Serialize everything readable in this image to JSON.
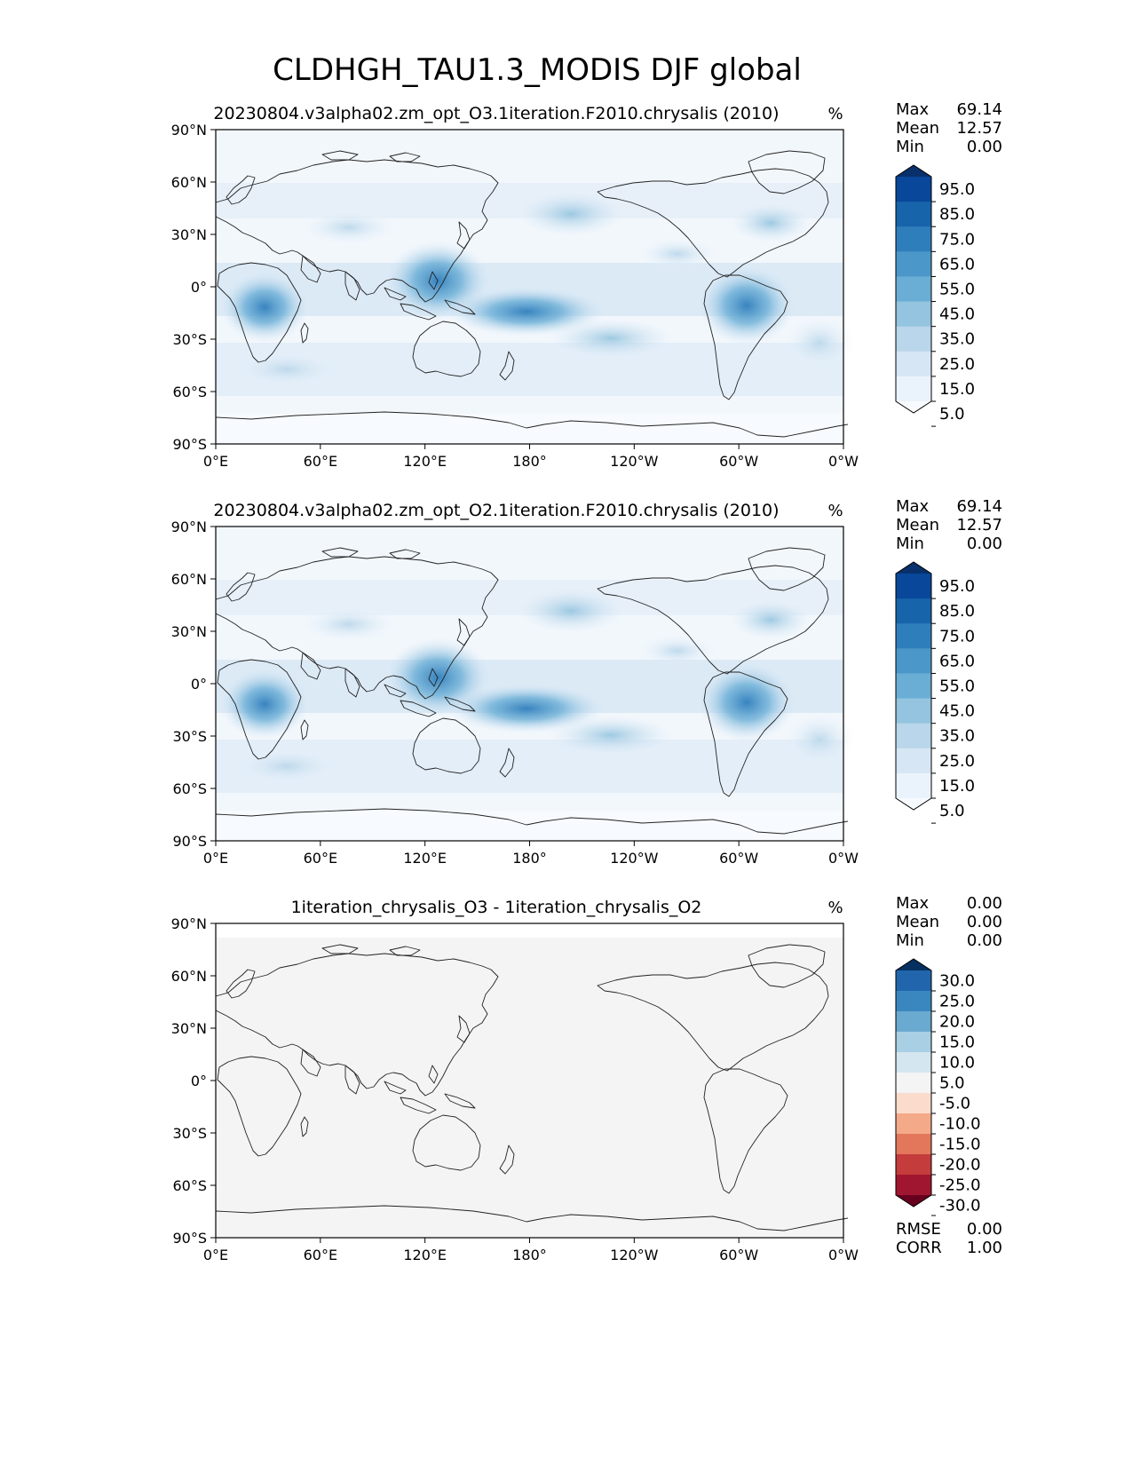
{
  "title": "CLDHGH_TAU1.3_MODIS DJF global",
  "axes": {
    "lat_ticks": [
      "90°N",
      "60°N",
      "30°N",
      "0°",
      "30°S",
      "60°S",
      "90°S"
    ],
    "lon_ticks": [
      "0°E",
      "60°E",
      "120°E",
      "180°",
      "120°W",
      "60°W",
      "0°W"
    ]
  },
  "panels": [
    {
      "title": "20230804.v3alpha02.zm_opt_O3.1iteration.F2010.chrysalis (2010)",
      "units": "%",
      "stats": [
        {
          "label": "Max",
          "value": "69.14"
        },
        {
          "label": "Mean",
          "value": "12.57"
        },
        {
          "label": "Min",
          "value": "0.00"
        }
      ],
      "colorbar": {
        "labels": [
          "95.0",
          "85.0",
          "75.0",
          "65.0",
          "55.0",
          "45.0",
          "35.0",
          "25.0",
          "15.0",
          "5.0"
        ],
        "colors": [
          "#08306b",
          "#08479a",
          "#1764ab",
          "#2f7ebc",
          "#4b97c9",
          "#6aaed6",
          "#94c4df",
          "#b9d6ea",
          "#d6e6f4",
          "#eaf3fb",
          "#f7fbff"
        ]
      }
    },
    {
      "title": "20230804.v3alpha02.zm_opt_O2.1iteration.F2010.chrysalis (2010)",
      "units": "%",
      "stats": [
        {
          "label": "Max",
          "value": "69.14"
        },
        {
          "label": "Mean",
          "value": "12.57"
        },
        {
          "label": "Min",
          "value": "0.00"
        }
      ],
      "colorbar": {
        "labels": [
          "95.0",
          "85.0",
          "75.0",
          "65.0",
          "55.0",
          "45.0",
          "35.0",
          "25.0",
          "15.0",
          "5.0"
        ],
        "colors": [
          "#08306b",
          "#08479a",
          "#1764ab",
          "#2f7ebc",
          "#4b97c9",
          "#6aaed6",
          "#94c4df",
          "#b9d6ea",
          "#d6e6f4",
          "#eaf3fb",
          "#f7fbff"
        ]
      }
    },
    {
      "title": "1iteration_chrysalis_O3 - 1iteration_chrysalis_O2",
      "units": "%",
      "stats": [
        {
          "label": "Max",
          "value": "0.00"
        },
        {
          "label": "Mean",
          "value": "0.00"
        },
        {
          "label": "Min",
          "value": "0.00"
        }
      ],
      "colorbar": {
        "labels": [
          "30.0",
          "25.0",
          "20.0",
          "15.0",
          "10.0",
          "5.0",
          "-5.0",
          "-10.0",
          "-15.0",
          "-20.0",
          "-25.0",
          "-30.0"
        ],
        "colors": [
          "#053061",
          "#2166ac",
          "#3a87bf",
          "#6aa9d0",
          "#a8cfe4",
          "#d4e6f0",
          "#f4f4f4",
          "#fbdccc",
          "#f4aa88",
          "#e3775c",
          "#c43c3c",
          "#a01630",
          "#67001f"
        ]
      },
      "extra_stats": [
        {
          "label": "RMSE",
          "value": "0.00"
        },
        {
          "label": "CORR",
          "value": "1.00"
        }
      ]
    }
  ]
}
